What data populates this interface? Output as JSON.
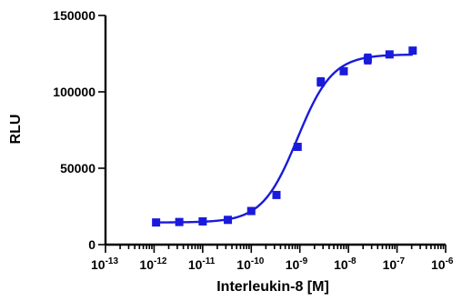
{
  "chart_data": {
    "type": "scatter",
    "title": "",
    "xlabel": "Interleukin-8 [M]",
    "ylabel": "RLU",
    "x_scale": "log10",
    "xlim": [
      1e-13,
      1e-06
    ],
    "ylim": [
      0,
      150000
    ],
    "x_ticks": [
      {
        "value": 1e-13,
        "base": "10",
        "exp": "-13"
      },
      {
        "value": 1e-12,
        "base": "10",
        "exp": "-12"
      },
      {
        "value": 1e-11,
        "base": "10",
        "exp": "-11"
      },
      {
        "value": 1e-10,
        "base": "10",
        "exp": "-10"
      },
      {
        "value": 1e-09,
        "base": "10",
        "exp": "-9"
      },
      {
        "value": 1e-08,
        "base": "10",
        "exp": "-8"
      },
      {
        "value": 1e-07,
        "base": "10",
        "exp": "-7"
      },
      {
        "value": 1e-06,
        "base": "10",
        "exp": "-6"
      }
    ],
    "y_ticks": [
      {
        "value": 0,
        "label": "0"
      },
      {
        "value": 50000,
        "label": "50000"
      },
      {
        "value": 100000,
        "label": "100000"
      },
      {
        "value": 150000,
        "label": "150000"
      }
    ],
    "grid": false,
    "color": "#1a1adc",
    "series": [
      {
        "marker": "square",
        "x": [
          1.1e-12,
          3.3e-12,
          1e-11,
          3.3e-11,
          1e-10,
          3.3e-10,
          9e-10,
          2.7e-09,
          8e-09,
          2.5e-08,
          7e-08,
          2.1e-07
        ],
        "y": [
          14500,
          14800,
          15200,
          16200,
          22000,
          32500,
          64000,
          106500,
          113500,
          121500,
          124500,
          127000
        ],
        "err": [
          500,
          500,
          500,
          500,
          800,
          800,
          1000,
          2500,
          1000,
          3000,
          1000,
          1500
        ]
      }
    ],
    "fit": {
      "model": "four-parameter-logistic",
      "bottom": 14500,
      "top": 124500,
      "logEC50": -9.05,
      "hillslope": 1.2
    }
  }
}
